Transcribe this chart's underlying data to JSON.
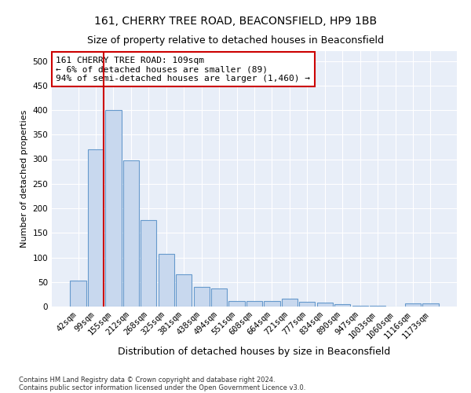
{
  "title": "161, CHERRY TREE ROAD, BEACONSFIELD, HP9 1BB",
  "subtitle": "Size of property relative to detached houses in Beaconsfield",
  "xlabel": "Distribution of detached houses by size in Beaconsfield",
  "ylabel": "Number of detached properties",
  "bar_labels": [
    "42sqm",
    "99sqm",
    "155sqm",
    "212sqm",
    "268sqm",
    "325sqm",
    "381sqm",
    "438sqm",
    "494sqm",
    "551sqm",
    "608sqm",
    "664sqm",
    "721sqm",
    "777sqm",
    "834sqm",
    "890sqm",
    "947sqm",
    "1003sqm",
    "1060sqm",
    "1116sqm",
    "1173sqm"
  ],
  "bar_values": [
    53,
    320,
    400,
    297,
    176,
    107,
    65,
    40,
    37,
    12,
    11,
    11,
    16,
    10,
    8,
    5,
    2,
    1,
    0,
    6,
    7
  ],
  "bar_color": "#c8d8ee",
  "bar_edge_color": "#6699cc",
  "vline_color": "#cc0000",
  "annotation_text": "161 CHERRY TREE ROAD: 109sqm\n← 6% of detached houses are smaller (89)\n94% of semi-detached houses are larger (1,460) →",
  "annotation_box_color": "#ffffff",
  "annotation_box_edge": "#cc0000",
  "ylim": [
    0,
    520
  ],
  "yticks": [
    0,
    50,
    100,
    150,
    200,
    250,
    300,
    350,
    400,
    450,
    500
  ],
  "footer1": "Contains HM Land Registry data © Crown copyright and database right 2024.",
  "footer2": "Contains public sector information licensed under the Open Government Licence v3.0.",
  "background_color": "#e8eef8",
  "grid_color": "#ffffff",
  "title_fontsize": 10,
  "subtitle_fontsize": 9,
  "xlabel_fontsize": 9,
  "ylabel_fontsize": 8,
  "tick_fontsize": 7.5,
  "annotation_fontsize": 8,
  "footer_fontsize": 6
}
